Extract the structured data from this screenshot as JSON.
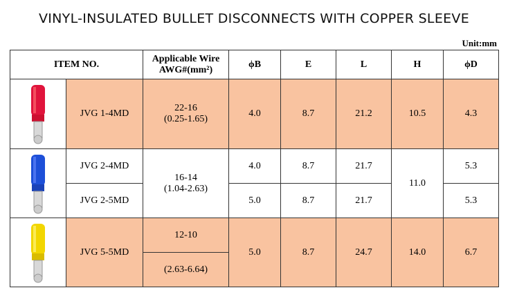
{
  "title": "VINYL-INSULATED BULLET DISCONNECTS WITH COPPER SLEEVE",
  "unit": "Unit:mm",
  "header": {
    "item": "ITEM NO.",
    "wire": [
      "Applicable Wire",
      "AWG#(mm²)"
    ],
    "b": "ϕB",
    "e": "E",
    "l": "L",
    "h": "H",
    "d": "ϕD"
  },
  "groups": [
    {
      "items": [
        "JVG 1-4MD"
      ],
      "wire": [
        "22-16",
        "(0.25-1.65)"
      ],
      "b": [
        "4.0"
      ],
      "e": [
        "8.7"
      ],
      "l": [
        "21.2"
      ],
      "h": "10.5",
      "d": [
        "4.3"
      ]
    },
    {
      "items": [
        "JVG 2-4MD",
        "JVG 2-5MD"
      ],
      "wire": [
        "16-14",
        "(1.04-2.63)"
      ],
      "b": [
        "4.0",
        "5.0"
      ],
      "e": [
        "8.7",
        "8.7"
      ],
      "l": [
        "21.7",
        "21.7"
      ],
      "h": "11.0",
      "d": [
        "5.3",
        "5.3"
      ]
    },
    {
      "items": [
        "JVG 5-5MD"
      ],
      "wire": [
        "12-10",
        "(2.63-6.64)"
      ],
      "b": [
        "5.0"
      ],
      "e": [
        "8.7"
      ],
      "l": [
        "24.7"
      ],
      "h": "14.0",
      "d": [
        "6.7"
      ]
    }
  ]
}
